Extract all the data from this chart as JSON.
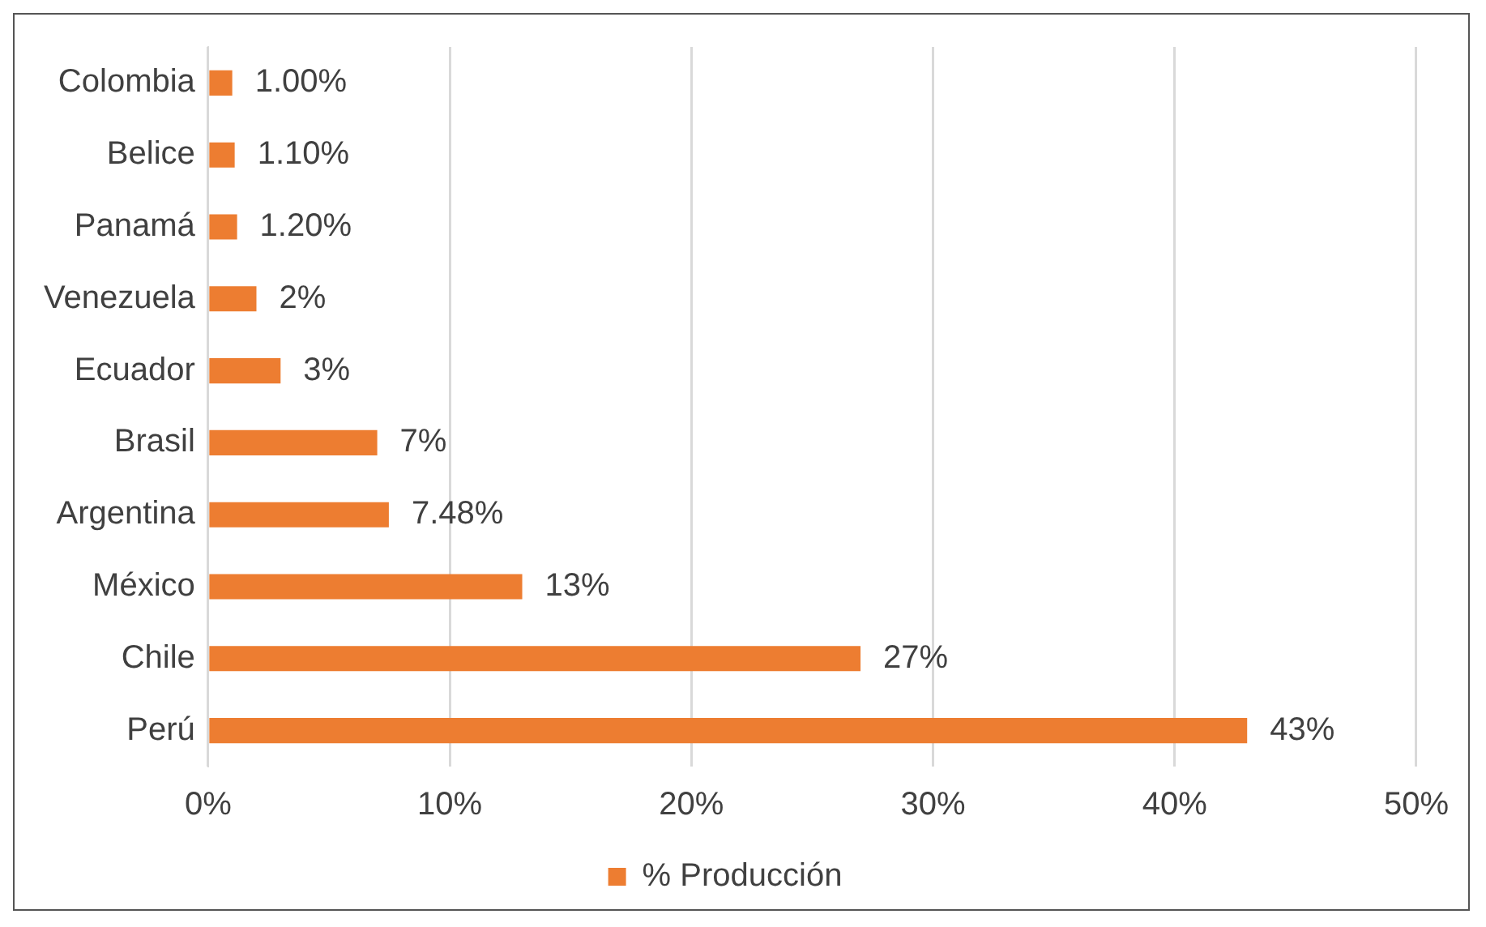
{
  "chart_data": {
    "type": "bar",
    "orientation": "horizontal",
    "categories": [
      "Colombia",
      "Belice",
      "Panamá",
      "Venezuela",
      "Ecuador",
      "Brasil",
      "Argentina",
      "México",
      "Chile",
      "Perú"
    ],
    "series": [
      {
        "name": "% Producción",
        "color": "#ed7d31",
        "values": [
          1,
          1.1,
          1.2,
          2,
          3,
          7,
          7.48,
          13,
          27,
          43
        ],
        "value_labels": [
          "1.00%",
          "1.10%",
          "1.20%",
          "2%",
          "3%",
          "7%",
          "7.48%",
          "13%",
          "27%",
          "43%"
        ]
      }
    ],
    "xlim": [
      0,
      50
    ],
    "xticks": [
      {
        "value": 0,
        "label": "0%"
      },
      {
        "value": 10,
        "label": "10%"
      },
      {
        "value": 20,
        "label": "20%"
      },
      {
        "value": 30,
        "label": "30%"
      },
      {
        "value": 40,
        "label": "40%"
      },
      {
        "value": 50,
        "label": "50%"
      }
    ],
    "grid": "x",
    "legend": "bottom"
  }
}
